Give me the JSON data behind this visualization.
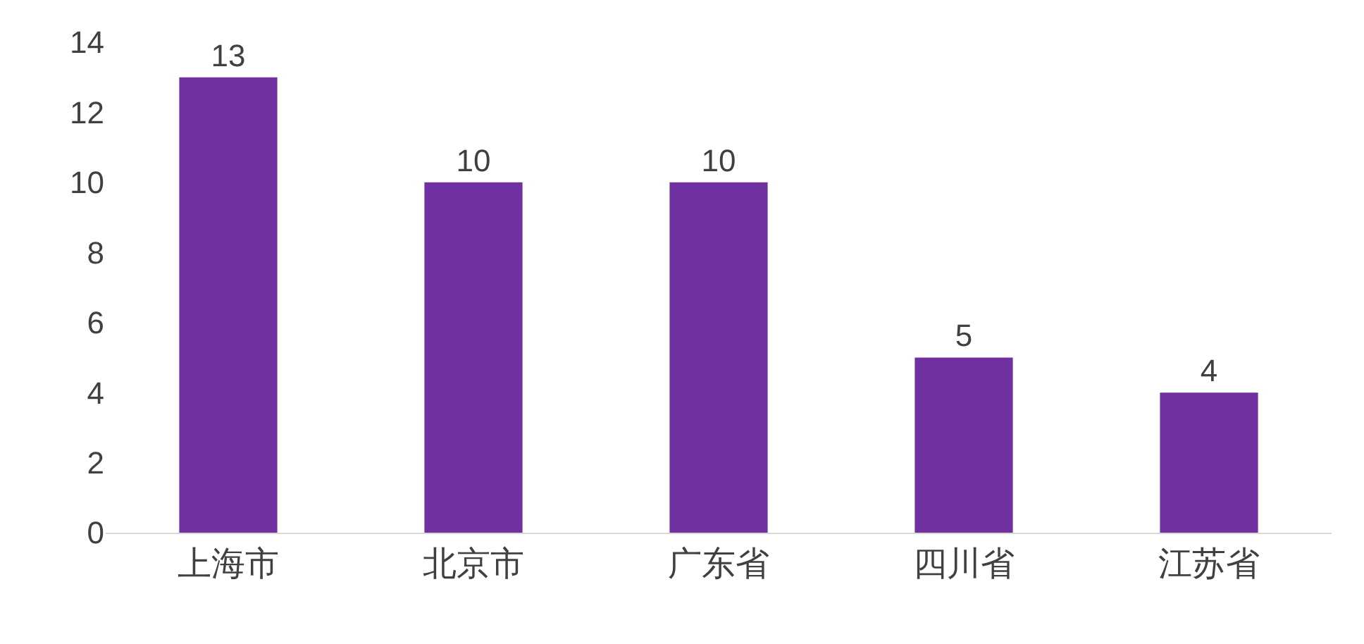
{
  "chart_data": {
    "type": "bar",
    "categories": [
      "上海市",
      "北京市",
      "广东省",
      "四川省",
      "江苏省"
    ],
    "values": [
      13,
      10,
      10,
      5,
      4
    ],
    "color": "#7030a0",
    "ylim": [
      0,
      14
    ],
    "yticks": [
      0,
      2,
      4,
      6,
      8,
      10,
      12,
      14
    ],
    "data_labels": true
  }
}
